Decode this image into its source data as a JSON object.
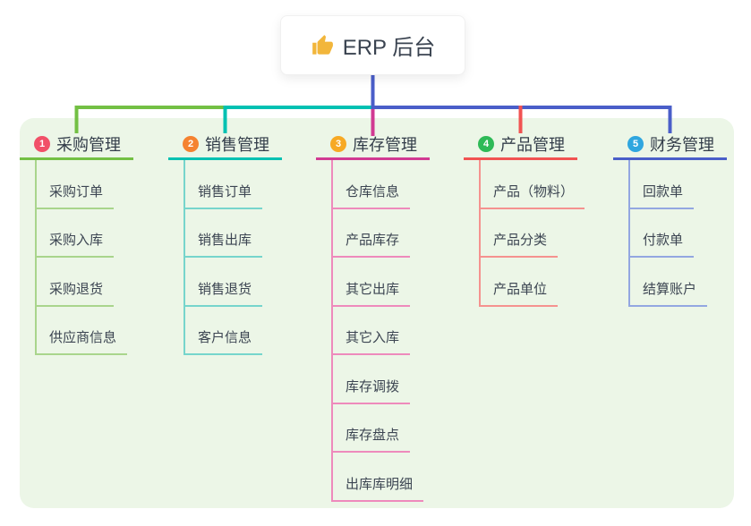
{
  "root": {
    "label": "ERP 后台",
    "icon": "thumbs-up-icon"
  },
  "colors": {
    "canvas_bg": "#ffffff",
    "panel_bg": "#ecf6e7",
    "root_connector": "#4a5ec9",
    "text_dark": "#333d4a",
    "thumb_icon": "#f2b63b"
  },
  "branches": [
    {
      "number": "1",
      "label": "采购管理",
      "badge_color": "#f15068",
      "line_color": "#73c044",
      "child_line_color": "#a9d58c",
      "children": [
        "采购订单",
        "采购入库",
        "采购退货",
        "供应商信息"
      ]
    },
    {
      "number": "2",
      "label": "销售管理",
      "badge_color": "#f58230",
      "line_color": "#00c1b2",
      "child_line_color": "#76d5cc",
      "children": [
        "销售订单",
        "销售出库",
        "销售退货",
        "客户信息"
      ]
    },
    {
      "number": "3",
      "label": "库存管理",
      "badge_color": "#f7a924",
      "line_color": "#d13a92",
      "child_line_color": "#ee8abc",
      "children": [
        "仓库信息",
        "产品库存",
        "其它出库",
        "其它入库",
        "库存调拨",
        "库存盘点",
        "出库库明细"
      ]
    },
    {
      "number": "4",
      "label": "产品管理",
      "badge_color": "#2eba57",
      "line_color": "#f15352",
      "child_line_color": "#f5928f",
      "children": [
        "产品（物料）",
        "产品分类",
        "产品单位"
      ]
    },
    {
      "number": "5",
      "label": "财务管理",
      "badge_color": "#2fa6df",
      "line_color": "#4a5ec9",
      "child_line_color": "#93a7e1",
      "children": [
        "回款单",
        "付款单",
        "结算账户"
      ]
    }
  ]
}
